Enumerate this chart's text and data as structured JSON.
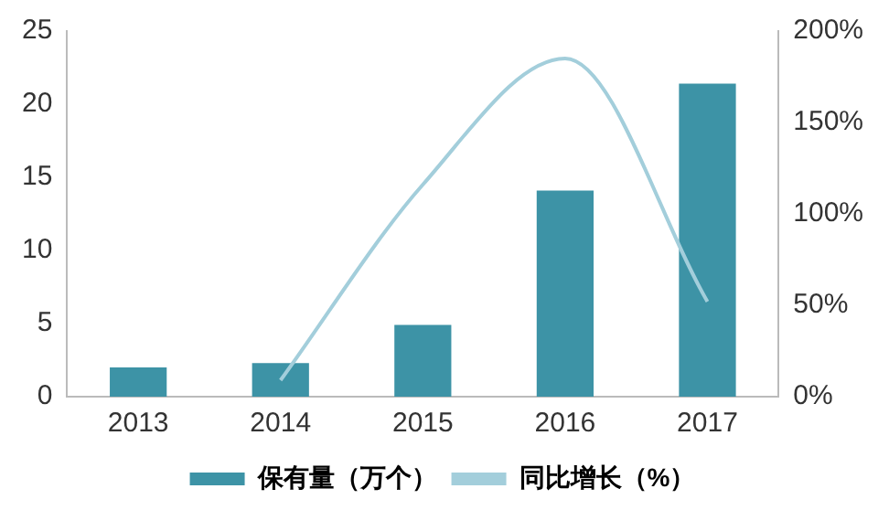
{
  "chart_data": {
    "type": "bar",
    "categories": [
      "2013",
      "2014",
      "2015",
      "2016",
      "2017"
    ],
    "series": [
      {
        "name": "保有量（万个）",
        "color": "#3d93a6",
        "values": [
          2.0,
          2.3,
          4.9,
          14.1,
          21.4
        ]
      },
      {
        "name": "同比增长（%）",
        "type": "line",
        "color": "#a3cedb",
        "axis": "y2",
        "values": [
          null,
          9,
          116,
          185,
          52
        ]
      }
    ],
    "ylim": [
      0,
      25
    ],
    "yticks": [
      0,
      5,
      10,
      15,
      20,
      25
    ],
    "y2lim": [
      0,
      200
    ],
    "y2ticks": [
      {
        "value": 0,
        "label": "0%"
      },
      {
        "value": 50,
        "label": "50%"
      },
      {
        "value": 100,
        "label": "100%"
      },
      {
        "value": 150,
        "label": "150%"
      },
      {
        "value": 200,
        "label": "200%"
      }
    ],
    "grid": false,
    "legend": "bottom",
    "marker": "none",
    "line_style": "solid"
  }
}
